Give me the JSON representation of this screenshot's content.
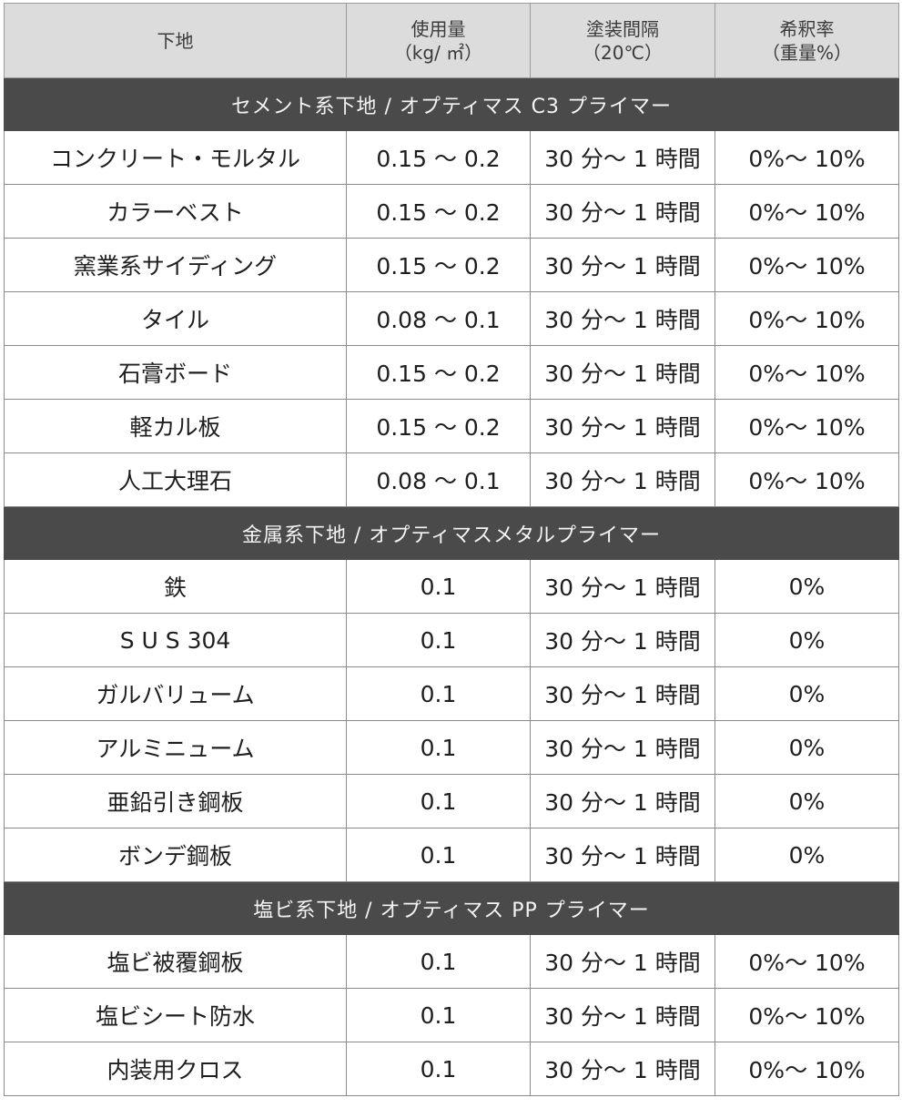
{
  "headers": [
    {
      "line1": "下地",
      "line2": ""
    },
    {
      "line1": "使用量",
      "line2": "（kg/ ㎡）"
    },
    {
      "line1": "塗装間隔",
      "line2": "（20℃）"
    },
    {
      "line1": "希釈率",
      "line2": "（重量%）"
    }
  ],
  "sections": [
    {
      "title": "セメント系下地 / オプティマス C3 プライマー",
      "rows": [
        {
          "substrate": "コンクリート・モルタル",
          "usage": "0.15 〜 0.2",
          "interval": "30 分〜 1 時間",
          "dilution": "0%〜 10%"
        },
        {
          "substrate": "カラーベスト",
          "usage": "0.15 〜 0.2",
          "interval": "30 分〜 1 時間",
          "dilution": "0%〜 10%"
        },
        {
          "substrate": "窯業系サイディング",
          "usage": "0.15 〜 0.2",
          "interval": "30 分〜 1 時間",
          "dilution": "0%〜 10%"
        },
        {
          "substrate": "タイル",
          "usage": "0.08 〜 0.1",
          "interval": "30 分〜 1 時間",
          "dilution": "0%〜 10%"
        },
        {
          "substrate": "石膏ボード",
          "usage": "0.15 〜 0.2",
          "interval": "30 分〜 1 時間",
          "dilution": "0%〜 10%"
        },
        {
          "substrate": "軽カル板",
          "usage": "0.15 〜 0.2",
          "interval": "30 分〜 1 時間",
          "dilution": "0%〜 10%"
        },
        {
          "substrate": "人工大理石",
          "usage": "0.08 〜 0.1",
          "interval": "30 分〜 1 時間",
          "dilution": "0%〜 10%"
        }
      ]
    },
    {
      "title": "金属系下地 / オプティマスメタルプライマー",
      "rows": [
        {
          "substrate": "鉄",
          "usage": "0.1",
          "interval": "30 分〜 1 時間",
          "dilution": "0%"
        },
        {
          "substrate": "S U S 304",
          "usage": "0.1",
          "interval": "30 分〜 1 時間",
          "dilution": "0%"
        },
        {
          "substrate": "ガルバリューム",
          "usage": "0.1",
          "interval": "30 分〜 1 時間",
          "dilution": "0%"
        },
        {
          "substrate": "アルミニューム",
          "usage": "0.1",
          "interval": "30 分〜 1 時間",
          "dilution": "0%"
        },
        {
          "substrate": "亜鉛引き鋼板",
          "usage": "0.1",
          "interval": "30 分〜 1 時間",
          "dilution": "0%"
        },
        {
          "substrate": "ボンデ鋼板",
          "usage": "0.1",
          "interval": "30 分〜 1 時間",
          "dilution": "0%"
        }
      ]
    },
    {
      "title": "塩ビ系下地 / オプティマス PP プライマー",
      "rows": [
        {
          "substrate": "塩ビ被覆鋼板",
          "usage": "0.1",
          "interval": "30 分〜 1 時間",
          "dilution": "0%〜 10%"
        },
        {
          "substrate": "塩ビシート防水",
          "usage": "0.1",
          "interval": "30 分〜 1 時間",
          "dilution": "0%〜 10%"
        },
        {
          "substrate": "内装用クロス",
          "usage": "0.1",
          "interval": "30 分〜 1 時間",
          "dilution": "0%〜 10%"
        }
      ]
    }
  ]
}
